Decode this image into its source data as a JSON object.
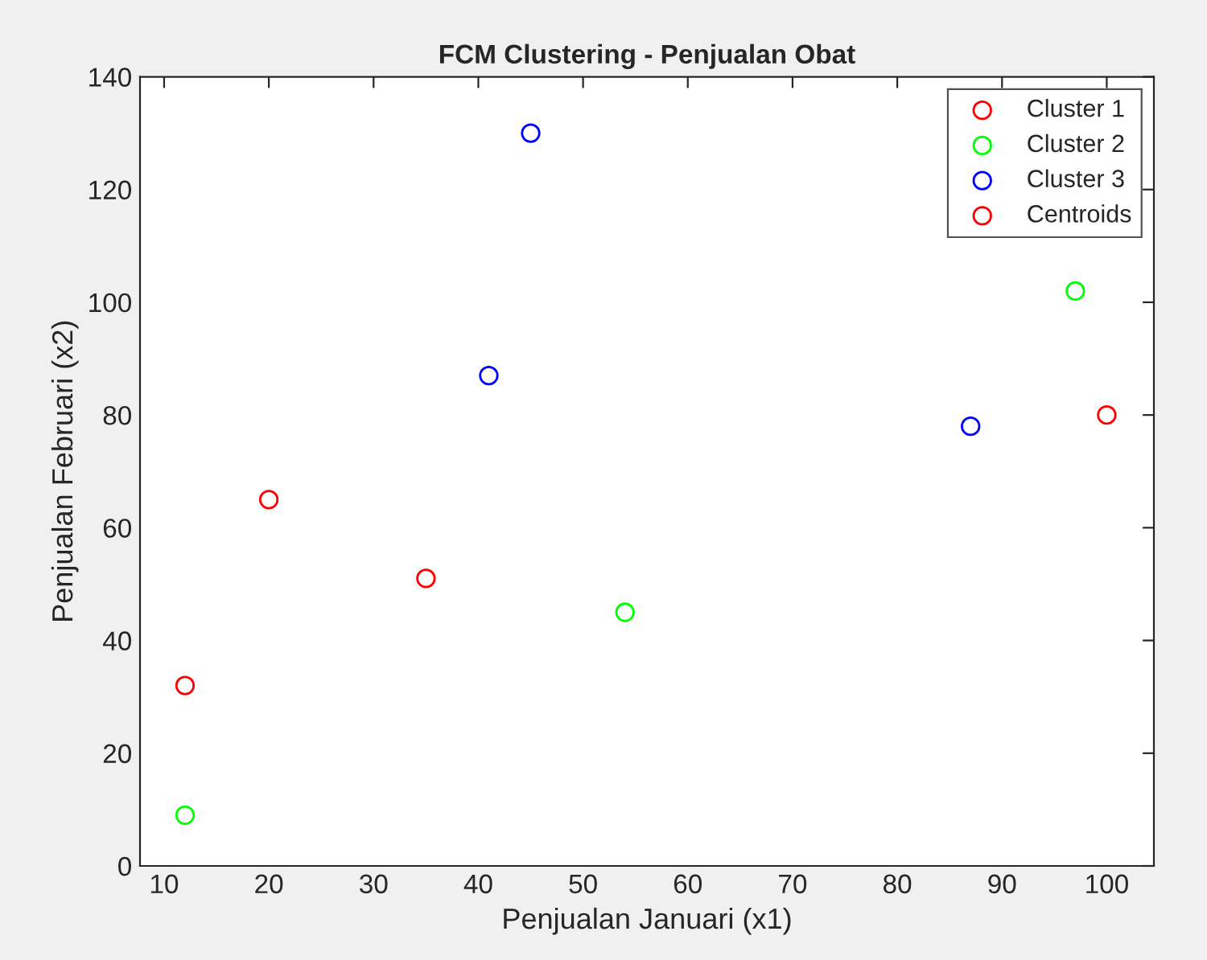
{
  "chart_data": {
    "type": "scatter",
    "title": "FCM Clustering - Penjualan Obat",
    "xlabel": "Penjualan Januari (x1)",
    "ylabel": "Penjualan Februari (x2)",
    "series": [
      {
        "name": "Cluster 1",
        "color": "#ff0000",
        "x": [
          12,
          20,
          35,
          100
        ],
        "values": [
          32,
          65,
          51,
          80
        ]
      },
      {
        "name": "Cluster 2",
        "color": "#00ff00",
        "x": [
          12,
          54,
          97
        ],
        "values": [
          9,
          45,
          102
        ]
      },
      {
        "name": "Cluster 3",
        "color": "#0000ff",
        "x": [
          41,
          45,
          87
        ],
        "values": [
          87,
          130,
          78
        ]
      },
      {
        "name": "Centroids",
        "color": "#ff0000"
      }
    ],
    "marker": "circle",
    "xlim": [
      7.7,
      104.5
    ],
    "xticks": [
      10,
      20,
      30,
      40,
      50,
      60,
      70,
      80,
      90,
      100
    ],
    "ylim": [
      0,
      140
    ],
    "yticks": [
      0,
      20,
      40,
      60,
      80,
      100,
      120,
      140
    ],
    "grid": false,
    "legend": "top right"
  }
}
